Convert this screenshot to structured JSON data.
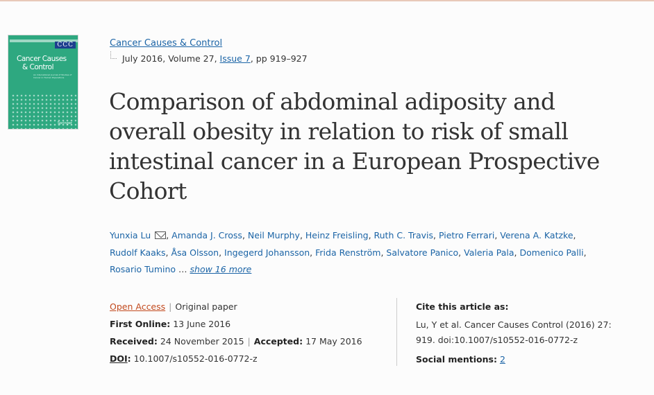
{
  "cover": {
    "logo": "CCC",
    "title_line1": "Cancer Causes",
    "title_line2": "& Control",
    "subtitle": "An International Journal of Studies of Cancer in Human Populations",
    "publisher": "Springer"
  },
  "citation": {
    "journal": "Cancer Causes & Control",
    "date_volume": "July 2016, Volume 27,",
    "issue": "Issue 7",
    "pages": ", pp 919–927"
  },
  "title": "Comparison of abdominal adiposity and overall obesity in relation to risk of small intestinal cancer in a European Prospective Cohort",
  "authors": {
    "list": [
      "Yunxia Lu",
      "Amanda J. Cross",
      "Neil Murphy",
      "Heinz Freisling",
      "Ruth C. Travis",
      "Pietro Ferrari",
      "Verena A. Katzke",
      "Rudolf Kaaks",
      "Åsa Olsson",
      "Ingegerd Johansson",
      "Frida Renström",
      "Salvatore Panico",
      "Valeria Pala",
      "Domenico Palli",
      "Rosario Tumino"
    ],
    "ellipsis": "…",
    "show_more": "show 16 more"
  },
  "meta": {
    "open_access": "Open Access",
    "type": "Original paper",
    "first_online_label": "First Online:",
    "first_online": "13 June 2016",
    "received_label": "Received:",
    "received": "24 November 2015",
    "accepted_label": "Accepted:",
    "accepted": "17 May 2016",
    "doi_label": "DOI",
    "doi": "10.1007/s10552-016-0772-z"
  },
  "cite": {
    "label": "Cite this article as:",
    "text": "Lu, Y et al. Cancer Causes Control (2016) 27: 919. doi:10.1007/s10552-016-0772-z",
    "mentions_label": "Social mentions:",
    "mentions_count": "2"
  }
}
